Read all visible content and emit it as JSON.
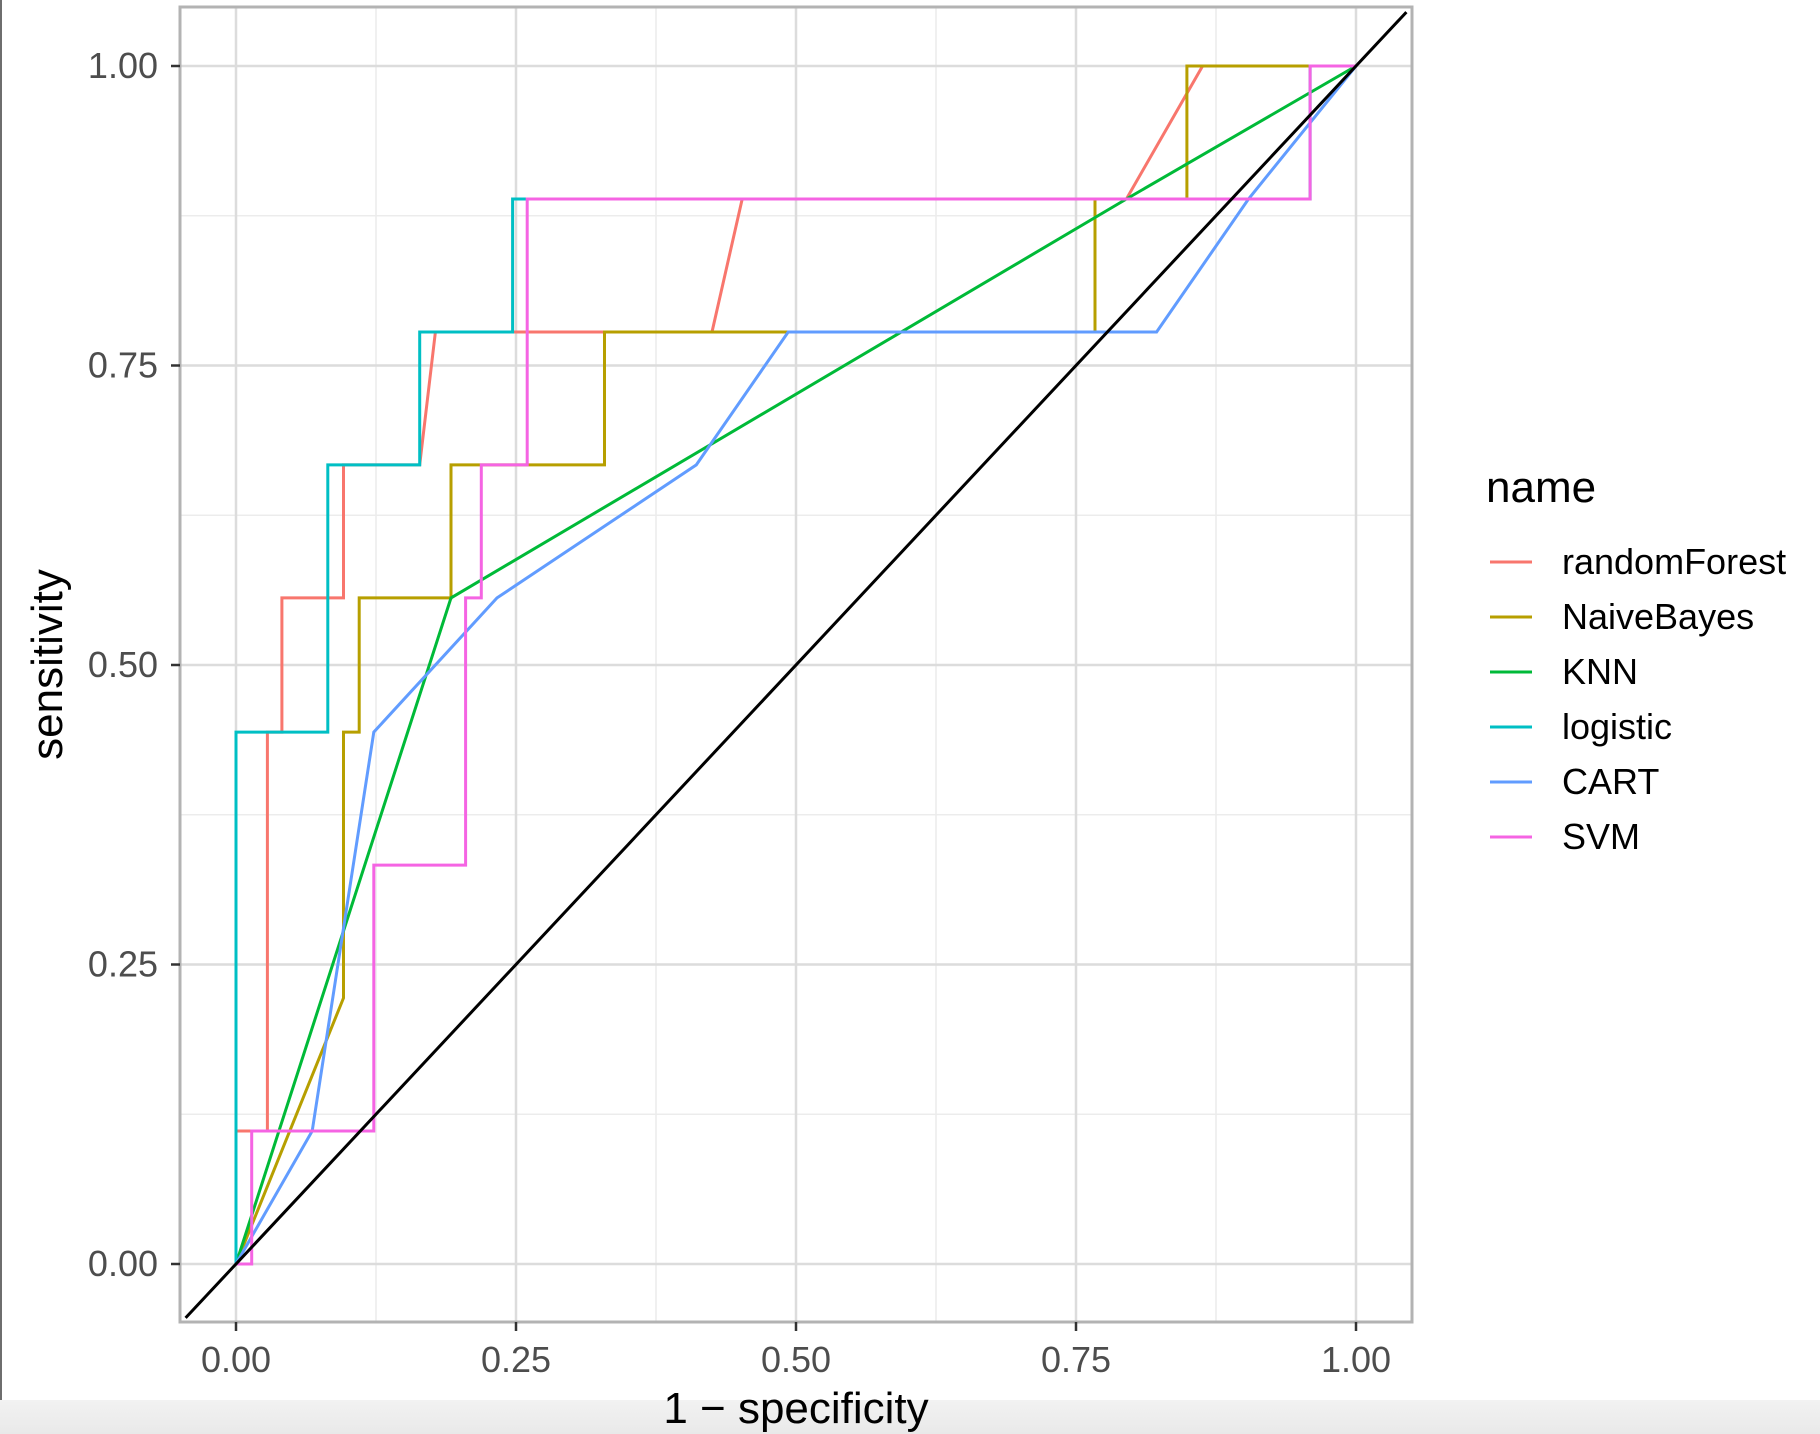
{
  "chart_data": {
    "type": "line",
    "xlabel": "1 − specificity",
    "ylabel": "sensitivity",
    "xlim": [
      -0.045,
      1.045
    ],
    "ylim": [
      -0.045,
      1.045
    ],
    "x_ticks": [
      0,
      0.25,
      0.5,
      0.75,
      1
    ],
    "x_tick_labels": [
      "0.00",
      "0.25",
      "0.50",
      "0.75",
      "1.00"
    ],
    "y_ticks": [
      0,
      0.25,
      0.5,
      0.75,
      1
    ],
    "y_tick_labels": [
      "0.00",
      "0.25",
      "0.50",
      "0.75",
      "1.00"
    ],
    "grid": true,
    "legend": {
      "title": "name",
      "position": "right"
    },
    "diagonal": {
      "x": [
        -0.045,
        1.045
      ],
      "y": [
        -0.045,
        1.045
      ],
      "color": "#000000"
    },
    "series": [
      {
        "name": "randomForest",
        "color": "#F8766D",
        "points": [
          [
            0,
            0
          ],
          [
            0,
            0.111
          ],
          [
            0.028,
            0.111
          ],
          [
            0.028,
            0.444
          ],
          [
            0.041,
            0.444
          ],
          [
            0.041,
            0.556
          ],
          [
            0.096,
            0.556
          ],
          [
            0.096,
            0.667
          ],
          [
            0.164,
            0.667
          ],
          [
            0.178,
            0.778
          ],
          [
            0.425,
            0.778
          ],
          [
            0.452,
            0.889
          ],
          [
            0.795,
            0.889
          ],
          [
            0.863,
            1
          ],
          [
            1,
            1
          ]
        ]
      },
      {
        "name": "NaiveBayes",
        "color": "#B79F00",
        "points": [
          [
            0,
            0
          ],
          [
            0.096,
            0.222
          ],
          [
            0.096,
            0.444
          ],
          [
            0.11,
            0.444
          ],
          [
            0.11,
            0.556
          ],
          [
            0.192,
            0.556
          ],
          [
            0.192,
            0.667
          ],
          [
            0.329,
            0.667
          ],
          [
            0.329,
            0.778
          ],
          [
            0.767,
            0.778
          ],
          [
            0.767,
            0.889
          ],
          [
            0.849,
            0.889
          ],
          [
            0.849,
            1
          ],
          [
            1,
            1
          ]
        ]
      },
      {
        "name": "KNN",
        "color": "#00BA38",
        "points": [
          [
            0,
            0
          ],
          [
            0.192,
            0.556
          ],
          [
            0.795,
            0.889
          ],
          [
            1,
            1
          ]
        ]
      },
      {
        "name": "logistic",
        "color": "#00BFC4",
        "points": [
          [
            0,
            0
          ],
          [
            0,
            0.444
          ],
          [
            0.082,
            0.444
          ],
          [
            0.082,
            0.667
          ],
          [
            0.164,
            0.667
          ],
          [
            0.164,
            0.778
          ],
          [
            0.247,
            0.778
          ],
          [
            0.247,
            0.889
          ],
          [
            0.959,
            0.889
          ],
          [
            0.959,
            1
          ],
          [
            1,
            1
          ]
        ]
      },
      {
        "name": "CART",
        "color": "#619CFF",
        "points": [
          [
            0,
            0
          ],
          [
            0.068,
            0.111
          ],
          [
            0.123,
            0.444
          ],
          [
            0.233,
            0.556
          ],
          [
            0.411,
            0.667
          ],
          [
            0.493,
            0.778
          ],
          [
            0.822,
            0.778
          ],
          [
            0.904,
            0.889
          ],
          [
            1,
            1
          ]
        ]
      },
      {
        "name": "SVM",
        "color": "#F564E3",
        "points": [
          [
            0,
            0
          ],
          [
            0.014,
            0
          ],
          [
            0.014,
            0.111
          ],
          [
            0.123,
            0.111
          ],
          [
            0.123,
            0.333
          ],
          [
            0.205,
            0.333
          ],
          [
            0.205,
            0.556
          ],
          [
            0.219,
            0.556
          ],
          [
            0.219,
            0.667
          ],
          [
            0.26,
            0.667
          ],
          [
            0.26,
            0.889
          ],
          [
            0.959,
            0.889
          ],
          [
            0.959,
            1
          ],
          [
            1,
            1
          ]
        ]
      }
    ]
  }
}
